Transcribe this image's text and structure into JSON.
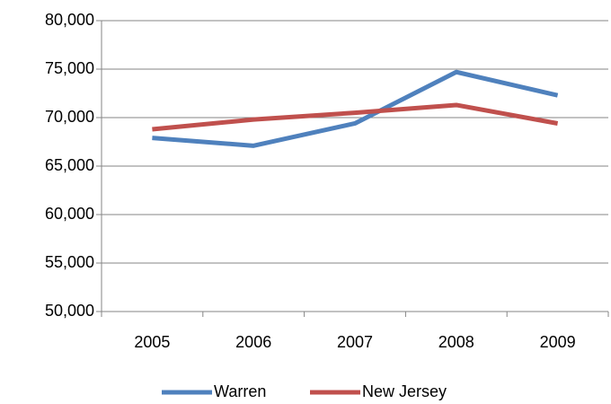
{
  "chart_data": {
    "type": "line",
    "categories": [
      "2005",
      "2006",
      "2007",
      "2008",
      "2009"
    ],
    "series": [
      {
        "name": "Warren",
        "color": "#4f81bd",
        "values": [
          67900,
          67100,
          69400,
          74700,
          72300
        ]
      },
      {
        "name": "New Jersey",
        "color": "#c0504d",
        "values": [
          68800,
          69800,
          70500,
          71300,
          69400
        ]
      }
    ],
    "ylim": [
      50000,
      80000
    ],
    "yticks": [
      {
        "value": 50000,
        "label": "50,000"
      },
      {
        "value": 55000,
        "label": "55,000"
      },
      {
        "value": 60000,
        "label": "60,000"
      },
      {
        "value": 65000,
        "label": "65,000"
      },
      {
        "value": 70000,
        "label": "70,000"
      },
      {
        "value": 75000,
        "label": "75,000"
      },
      {
        "value": 80000,
        "label": "80,000"
      }
    ],
    "grid": true,
    "legend": "bottom"
  }
}
